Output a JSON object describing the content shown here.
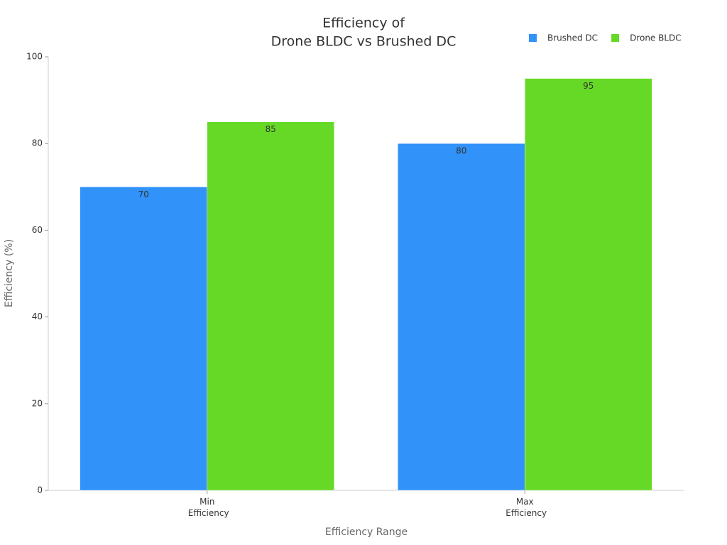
{
  "chart_data": {
    "type": "bar",
    "title": [
      "Efficiency of",
      "Drone BLDC vs Brushed DC"
    ],
    "x_label": "Efficiency Range",
    "y_label": "Efficiency (%)",
    "categories": [
      "Min Efficiency",
      "Max Efficiency"
    ],
    "series": [
      {
        "name": "Brushed DC",
        "color": "#3192f9",
        "values": [
          70,
          80
        ]
      },
      {
        "name": "Drone BLDC",
        "color": "#66d926",
        "values": [
          85,
          95
        ]
      }
    ],
    "ylim": [
      0,
      100
    ],
    "yticks": [
      0,
      20,
      40,
      60,
      80,
      100
    ],
    "grid": false,
    "legend": "top-right"
  }
}
